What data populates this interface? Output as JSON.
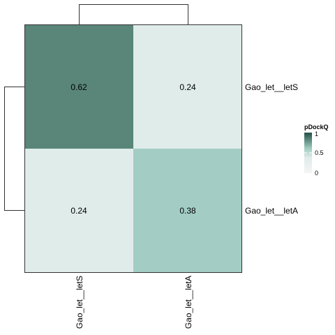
{
  "chart_data": {
    "type": "heatmap",
    "rows": [
      "Gao_let__letS",
      "Gao_let__letA"
    ],
    "columns": [
      "Gao_let__letS",
      "Gao_let__letA"
    ],
    "values": [
      [
        0.62,
        0.24
      ],
      [
        0.24,
        0.38
      ]
    ],
    "value_labels": [
      [
        "0.62",
        "0.24"
      ],
      [
        "0.24",
        "0.38"
      ]
    ],
    "legend": {
      "title": "pDockQ",
      "ticks": [
        0,
        0.5,
        1
      ],
      "tick_labels": [
        "0",
        "0.5",
        "1"
      ],
      "range": [
        0,
        1
      ],
      "low_color": "#ffffff",
      "mid_color": "#9ccabf",
      "high_color": "#244f45",
      "placement": "right"
    },
    "row_dendrogram": true,
    "column_dendrogram": true
  }
}
